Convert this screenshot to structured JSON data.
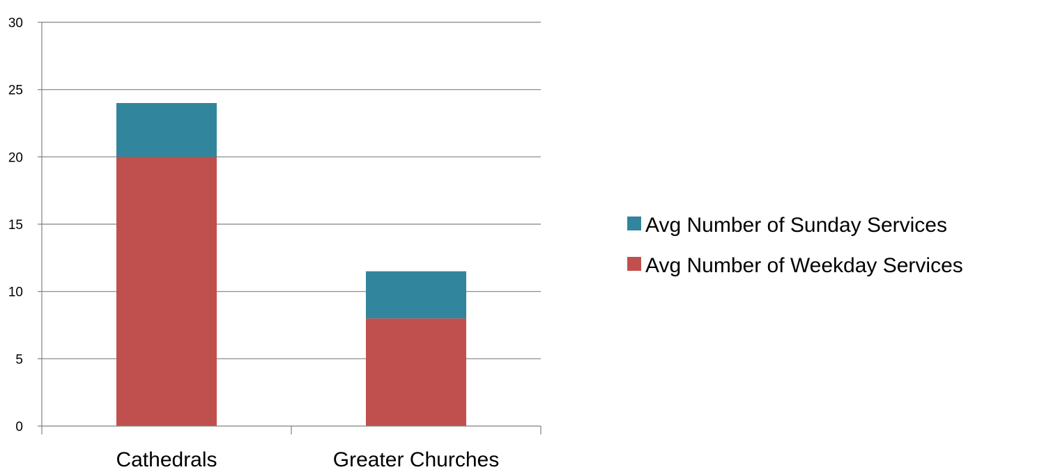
{
  "chart_data": {
    "type": "bar",
    "stacked": true,
    "categories": [
      "Cathedrals",
      "Greater Churches"
    ],
    "series": [
      {
        "name": "Avg Number of Weekday Services",
        "values": [
          20,
          8
        ],
        "color": "#c0504d"
      },
      {
        "name": "Avg Number of Sunday Services",
        "values": [
          4,
          3.5
        ],
        "color": "#31859c"
      }
    ],
    "ylim": [
      0,
      30
    ],
    "yticks": [
      "0",
      "5",
      "10",
      "15",
      "20",
      "25",
      "30"
    ],
    "ytick_values": [
      0,
      5,
      10,
      15,
      20,
      25,
      30
    ],
    "grid": true,
    "legend_position": "right",
    "legend_order": [
      "Avg Number of Sunday Services",
      "Avg Number of Weekday Services"
    ],
    "title": "",
    "xlabel": "",
    "ylabel": "",
    "axis_color": "#808080"
  }
}
